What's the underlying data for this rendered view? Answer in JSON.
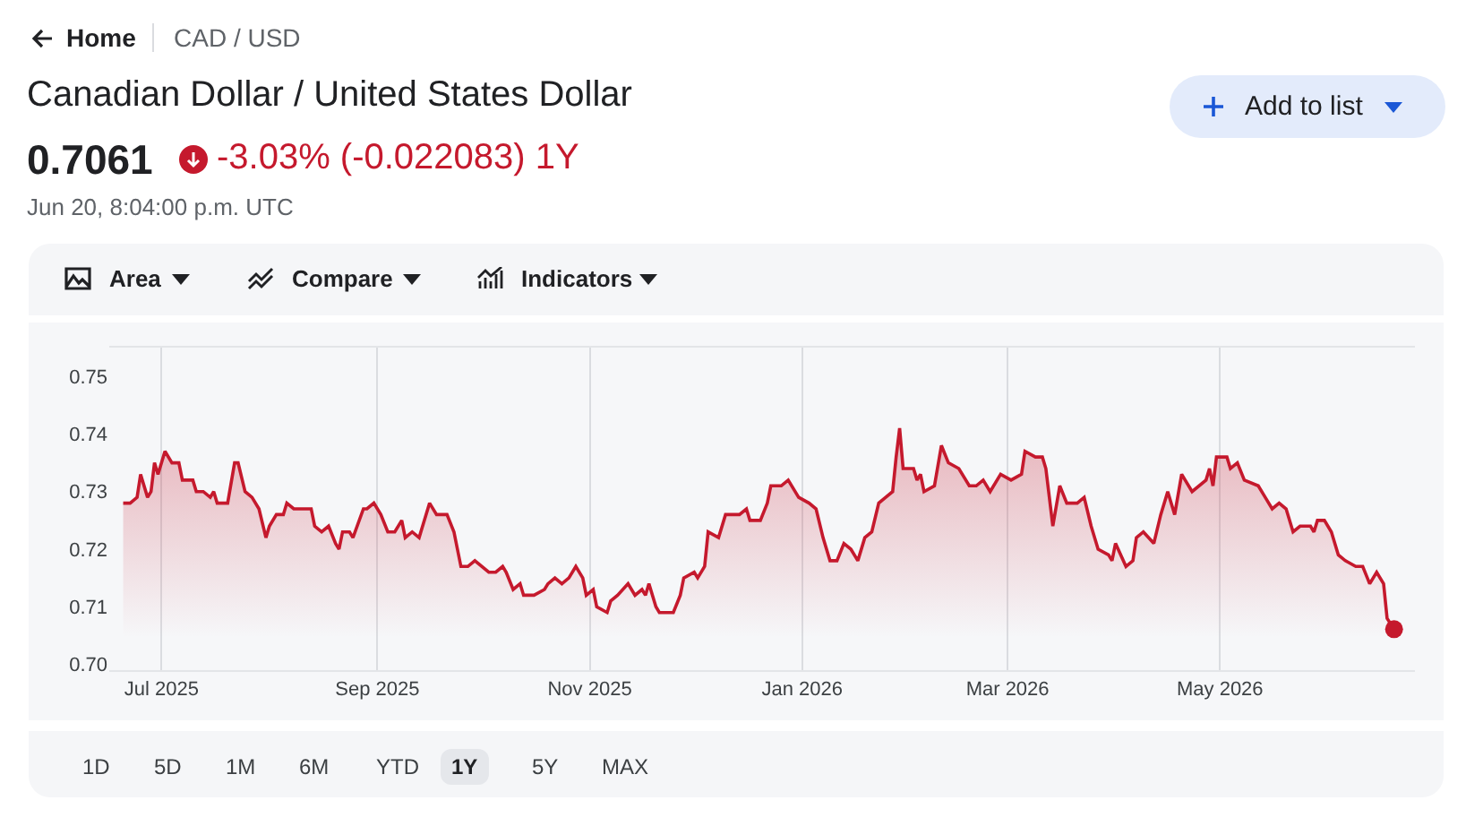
{
  "chart_data": {
    "type": "area",
    "title": "Canadian Dollar / United States Dollar",
    "subtitle": "0.7061",
    "annotations": [
      "Home",
      "CAD / USD",
      "-3.03% (-0.022083) 1Y",
      "Jun 20, 8:04:00 p.m. UTC",
      "Add to list",
      "Area",
      "Compare",
      "Indicators",
      "1D",
      "5D",
      "1M",
      "6M",
      "YTD",
      "1Y",
      "5Y",
      "MAX"
    ],
    "series": [
      {
        "color": "#c5192d",
        "x": [
          "2025-06-20",
          "2025-06-22",
          "2025-06-24",
          "2025-06-25",
          "2025-06-27",
          "2025-06-28",
          "2025-06-29",
          "2025-06-30",
          "2025-07-02",
          "2025-07-04",
          "2025-07-06",
          "2025-07-07",
          "2025-07-10",
          "2025-07-11",
          "2025-07-13",
          "2025-07-15",
          "2025-07-16",
          "2025-07-17",
          "2025-07-20",
          "2025-07-22",
          "2025-07-23",
          "2025-07-25",
          "2025-07-27",
          "2025-07-29",
          "2025-07-31",
          "2025-08-01",
          "2025-08-03",
          "2025-08-05",
          "2025-08-06",
          "2025-08-08",
          "2025-08-10",
          "2025-08-13",
          "2025-08-14",
          "2025-08-16",
          "2025-08-18",
          "2025-08-20",
          "2025-08-21",
          "2025-08-22",
          "2025-08-24",
          "2025-08-25",
          "2025-08-28",
          "2025-08-29",
          "2025-08-31",
          "2025-09-02",
          "2025-09-04",
          "2025-09-06",
          "2025-09-08",
          "2025-09-09",
          "2025-09-11",
          "2025-09-13",
          "2025-09-16",
          "2025-09-18",
          "2025-09-21",
          "2025-09-23",
          "2025-09-25",
          "2025-09-27",
          "2025-09-29",
          "2025-10-03",
          "2025-10-05",
          "2025-10-07",
          "2025-10-08",
          "2025-10-10",
          "2025-10-12",
          "2025-10-13",
          "2025-10-16",
          "2025-10-19",
          "2025-10-20",
          "2025-10-22",
          "2025-10-24",
          "2025-10-26",
          "2025-10-28",
          "2025-10-30",
          "2025-10-31",
          "2025-11-02",
          "2025-11-03",
          "2025-11-06",
          "2025-11-07",
          "2025-11-09",
          "2025-11-12",
          "2025-11-14",
          "2025-11-16",
          "2025-11-17",
          "2025-11-18",
          "2025-11-20",
          "2025-11-21",
          "2025-11-23",
          "2025-11-25",
          "2025-11-27",
          "2025-11-28",
          "2025-12-01",
          "2025-12-02",
          "2025-12-04",
          "2025-12-05",
          "2025-12-08",
          "2025-12-10",
          "2025-12-14",
          "2025-12-16",
          "2025-12-17",
          "2025-12-20",
          "2025-12-22",
          "2025-12-23",
          "2025-12-26",
          "2025-12-28",
          "2025-12-31",
          "2026-01-03",
          "2026-01-05",
          "2026-01-07",
          "2026-01-09",
          "2026-01-11",
          "2026-01-13",
          "2026-01-15",
          "2026-01-17",
          "2026-01-19",
          "2026-01-21",
          "2026-01-23",
          "2026-01-25",
          "2026-01-27",
          "2026-01-28",
          "2026-01-29",
          "2026-01-30",
          "2026-02-02",
          "2026-02-03",
          "2026-02-04",
          "2026-02-05",
          "2026-02-08",
          "2026-02-10",
          "2026-02-12",
          "2026-02-15",
          "2026-02-18",
          "2026-02-20",
          "2026-02-22",
          "2026-02-24",
          "2026-02-27",
          "2026-03-02",
          "2026-03-05",
          "2026-03-06",
          "2026-03-09",
          "2026-03-11",
          "2026-03-12",
          "2026-03-14",
          "2026-03-16",
          "2026-03-18",
          "2026-03-21",
          "2026-03-23",
          "2026-03-25",
          "2026-03-27",
          "2026-03-30",
          "2026-03-31",
          "2026-04-01",
          "2026-04-04",
          "2026-04-06",
          "2026-04-07",
          "2026-04-09",
          "2026-04-12",
          "2026-04-14",
          "2026-04-16",
          "2026-04-18",
          "2026-04-20",
          "2026-04-23",
          "2026-04-27",
          "2026-04-28",
          "2026-04-29",
          "2026-04-30",
          "2026-05-03",
          "2026-05-04",
          "2026-05-06",
          "2026-05-08",
          "2026-05-12",
          "2026-05-14",
          "2026-05-16",
          "2026-05-18",
          "2026-05-20",
          "2026-05-22",
          "2026-05-24",
          "2026-05-27",
          "2026-05-28",
          "2026-05-29",
          "2026-05-31",
          "2026-06-02",
          "2026-06-04",
          "2026-06-06",
          "2026-06-09",
          "2026-06-11",
          "2026-06-13",
          "2026-06-15",
          "2026-06-17",
          "2026-06-18",
          "2026-06-20"
        ],
        "values": [
          0.728,
          0.728,
          0.729,
          0.733,
          0.729,
          0.73,
          0.735,
          0.733,
          0.737,
          0.735,
          0.735,
          0.732,
          0.732,
          0.73,
          0.73,
          0.729,
          0.73,
          0.728,
          0.728,
          0.735,
          0.735,
          0.73,
          0.729,
          0.727,
          0.722,
          0.724,
          0.726,
          0.726,
          0.728,
          0.727,
          0.727,
          0.727,
          0.724,
          0.723,
          0.724,
          0.721,
          0.72,
          0.723,
          0.723,
          0.722,
          0.727,
          0.727,
          0.728,
          0.726,
          0.723,
          0.723,
          0.725,
          0.722,
          0.723,
          0.722,
          0.728,
          0.726,
          0.726,
          0.723,
          0.717,
          0.717,
          0.718,
          0.716,
          0.716,
          0.717,
          0.716,
          0.713,
          0.714,
          0.712,
          0.712,
          0.713,
          0.714,
          0.715,
          0.714,
          0.715,
          0.717,
          0.715,
          0.712,
          0.713,
          0.71,
          0.709,
          0.711,
          0.712,
          0.714,
          0.712,
          0.713,
          0.712,
          0.714,
          0.71,
          0.709,
          0.709,
          0.709,
          0.712,
          0.715,
          0.716,
          0.715,
          0.717,
          0.723,
          0.722,
          0.726,
          0.726,
          0.727,
          0.725,
          0.725,
          0.728,
          0.731,
          0.731,
          0.732,
          0.729,
          0.728,
          0.727,
          0.722,
          0.718,
          0.718,
          0.721,
          0.72,
          0.718,
          0.722,
          0.723,
          0.728,
          0.729,
          0.73,
          0.736,
          0.741,
          0.734,
          0.734,
          0.732,
          0.733,
          0.73,
          0.731,
          0.738,
          0.735,
          0.734,
          0.731,
          0.731,
          0.732,
          0.73,
          0.733,
          0.732,
          0.733,
          0.737,
          0.736,
          0.736,
          0.734,
          0.724,
          0.731,
          0.728,
          0.728,
          0.729,
          0.724,
          0.72,
          0.719,
          0.718,
          0.721,
          0.717,
          0.718,
          0.722,
          0.723,
          0.721,
          0.726,
          0.73,
          0.726,
          0.733,
          0.73,
          0.732,
          0.734,
          0.731,
          0.736,
          0.736,
          0.734,
          0.735,
          0.732,
          0.731,
          0.729,
          0.727,
          0.728,
          0.727,
          0.723,
          0.724,
          0.724,
          0.723,
          0.725,
          0.725,
          0.723,
          0.719,
          0.718,
          0.717,
          0.717,
          0.714,
          0.716,
          0.714,
          0.708,
          0.7061
        ]
      },
      {
        "type": "scatter",
        "color": "#c5192d",
        "x": [
          "2026-06-20"
        ],
        "values": [
          0.7061
        ]
      }
    ],
    "xlim": [
      "2025-06-16",
      "2026-06-26"
    ],
    "ylim": [
      0.699,
      0.755
    ],
    "xticks": [
      {
        "value": "2025-07-01",
        "label": "Jul 2025"
      },
      {
        "value": "2025-09-01",
        "label": "Sep 2025"
      },
      {
        "value": "2025-11-01",
        "label": "Nov 2025"
      },
      {
        "value": "2026-01-01",
        "label": "Jan 2026"
      },
      {
        "value": "2026-03-01",
        "label": "Mar 2026"
      },
      {
        "value": "2026-05-01",
        "label": "May 2026"
      }
    ],
    "yticks": [
      {
        "value": 0.7,
        "label": "0.70"
      },
      {
        "value": 0.71,
        "label": "0.71"
      },
      {
        "value": 0.72,
        "label": "0.72"
      },
      {
        "value": 0.73,
        "label": "0.73"
      },
      {
        "value": 0.74,
        "label": "0.74"
      },
      {
        "value": 0.75,
        "label": "0.75"
      }
    ],
    "grid": "x",
    "line_style": "solid"
  }
}
